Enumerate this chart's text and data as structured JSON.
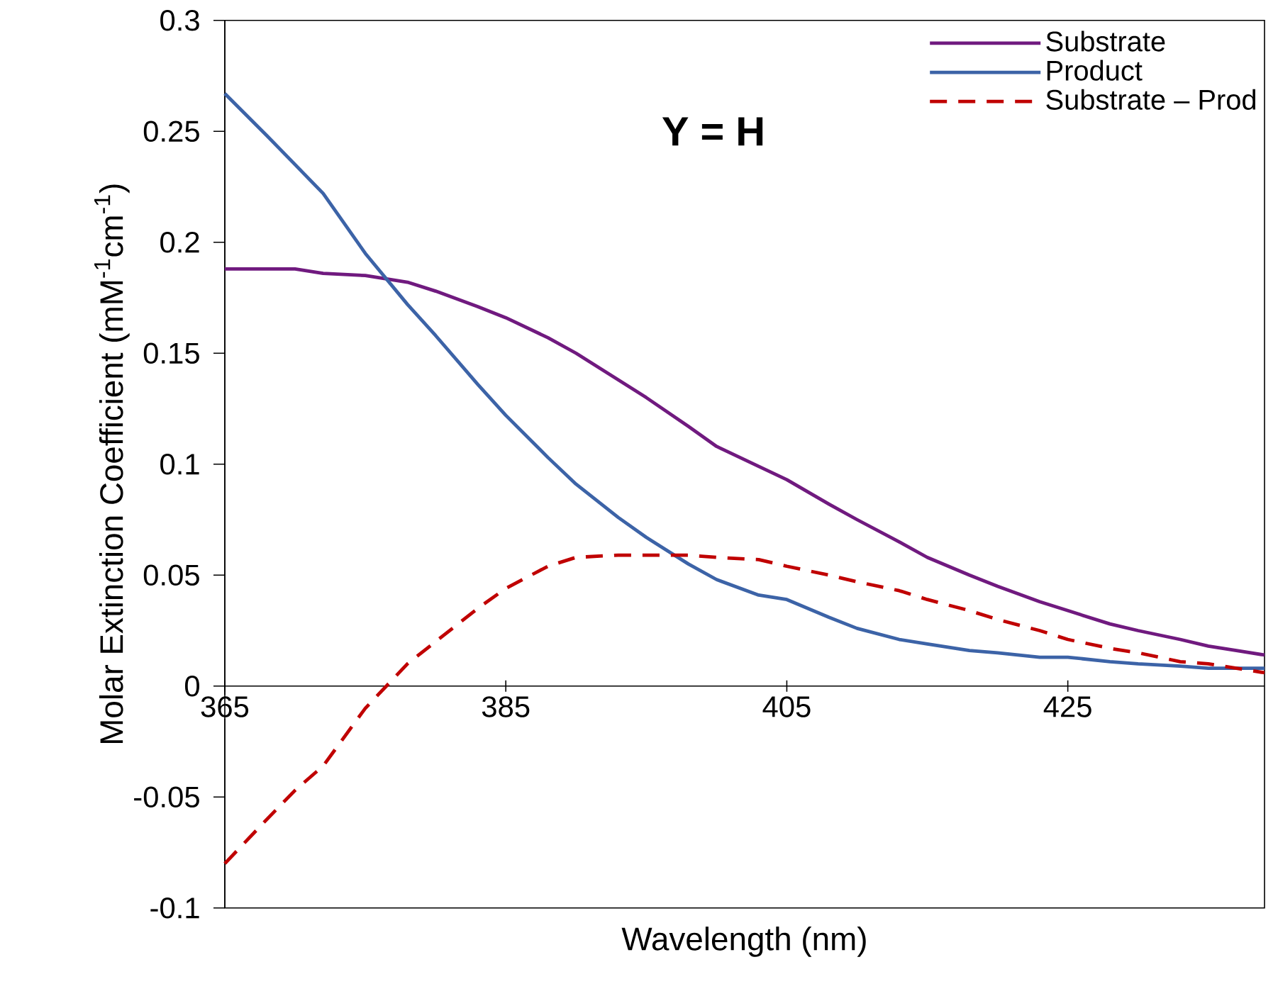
{
  "chart_data": {
    "type": "line",
    "xlabel": "Wavelength (nm)",
    "ylabel": "Molar Extinction Coefficient (mM$^{-1}$cm$^{-1}$)",
    "annotations": [
      "**Y = H**"
    ],
    "xlim": [
      365,
      439
    ],
    "xticks": [
      365,
      385,
      405,
      425
    ],
    "ylim": [
      -0.1,
      0.3
    ],
    "yticks": [
      -0.1,
      -0.05,
      0,
      0.05,
      0.1,
      0.15,
      0.2,
      0.25,
      0.3
    ],
    "legend": "top right",
    "grid": false,
    "x": [
      365,
      368,
      370,
      372,
      375,
      378,
      380,
      383,
      385,
      388,
      390,
      393,
      395,
      398,
      400,
      403,
      405,
      408,
      410,
      413,
      415,
      418,
      420,
      423,
      425,
      428,
      430,
      433,
      435,
      437,
      439
    ],
    "series": [
      {
        "name": "Substrate",
        "color": "#701a7f",
        "line_style": "solid",
        "values": [
          0.188,
          0.188,
          0.188,
          0.186,
          0.185,
          0.182,
          0.178,
          0.171,
          0.166,
          0.157,
          0.15,
          0.138,
          0.13,
          0.117,
          0.108,
          0.099,
          0.093,
          0.082,
          0.075,
          0.065,
          0.058,
          0.05,
          0.045,
          0.038,
          0.034,
          0.028,
          0.025,
          0.021,
          0.018,
          0.016,
          0.014
        ]
      },
      {
        "name": "Product",
        "color": "#3c63a7",
        "line_style": "solid",
        "values": [
          0.267,
          0.248,
          0.235,
          0.222,
          0.195,
          0.172,
          0.158,
          0.136,
          0.122,
          0.103,
          0.091,
          0.076,
          0.067,
          0.055,
          0.048,
          0.041,
          0.039,
          0.031,
          0.026,
          0.021,
          0.019,
          0.016,
          0.015,
          0.013,
          0.013,
          0.011,
          0.01,
          0.009,
          0.008,
          0.008,
          0.008
        ]
      },
      {
        "name": "Substrate – Prod",
        "color": "#c00000",
        "line_style": "dashed",
        "values": [
          -0.08,
          -0.06,
          -0.047,
          -0.036,
          -0.01,
          0.01,
          0.02,
          0.035,
          0.044,
          0.054,
          0.058,
          0.059,
          0.059,
          0.059,
          0.058,
          0.057,
          0.054,
          0.05,
          0.047,
          0.043,
          0.039,
          0.034,
          0.03,
          0.025,
          0.021,
          0.017,
          0.015,
          0.011,
          0.01,
          0.008,
          0.006
        ]
      }
    ]
  }
}
